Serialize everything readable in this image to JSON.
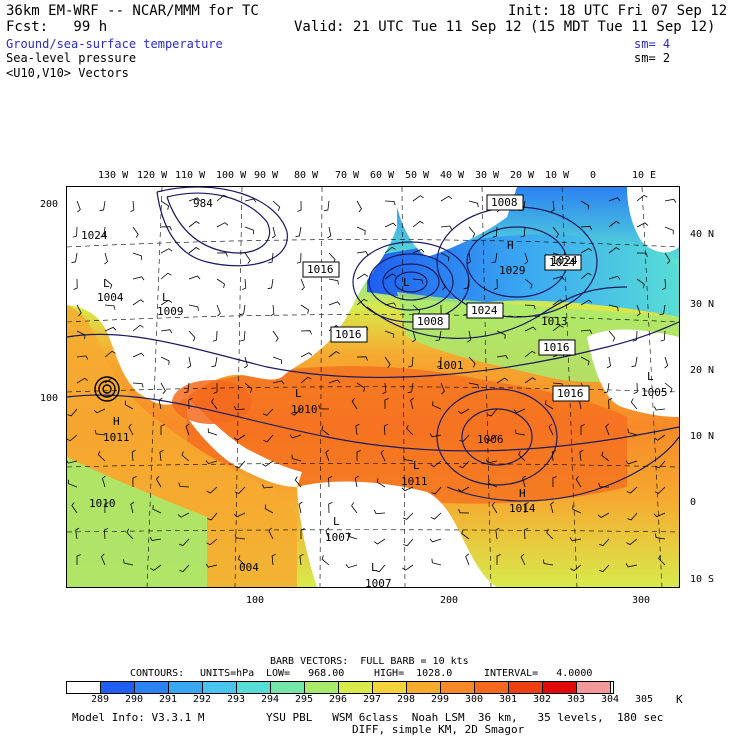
{
  "header": {
    "model": "36km EM-WRF -- NCAR/MMM for TC",
    "init": "Init: 18 UTC Fri 07 Sep 12",
    "fcst": "Fcst:   99 h",
    "valid": "Valid: 21 UTC Tue 11 Sep 12 (15 MDT Tue 11 Sep 12)",
    "field1": "Ground/sea-surface temperature",
    "field1_sm": "sm= 4",
    "field2": "Sea-level pressure",
    "field2_sm": "sm= 2",
    "field3": "<U10,V10> Vectors"
  },
  "axes": {
    "top_lon": [
      "130 W",
      "120 W",
      "110 W",
      "100 W",
      "90 W",
      "80 W",
      "70 W",
      "60 W",
      "50 W",
      "40 W",
      "30 W",
      "20 W",
      "10 W",
      "0",
      "10 E"
    ],
    "right_lat": [
      "40 N",
      "30 N",
      "20 N",
      "10 N",
      "0",
      "10 S"
    ],
    "left_y": [
      "200",
      "100"
    ],
    "bottom_x": [
      "100",
      "200",
      "300"
    ]
  },
  "pressure_labels": {
    "boxed": [
      "1008",
      "1016",
      "1024",
      "1016",
      "1008",
      "1024",
      "1016",
      "1016"
    ],
    "centers": [
      "984",
      "1024",
      "L",
      "1004",
      "L",
      "1009",
      "L",
      "1029",
      "H",
      "1024",
      "1013",
      "1001",
      "L",
      "1010",
      "H",
      "1011",
      "1006",
      "1005",
      "L",
      "1011",
      "L",
      "1014",
      "H",
      "1010",
      "L",
      "1007",
      "004",
      "1007",
      "L"
    ]
  },
  "barb_info": "BARB VECTORS:  FULL BARB = 10 kts",
  "contours": {
    "label": "CONTOURS:",
    "units": "UNITS=hPa",
    "low": "LOW=   968.00",
    "high": "HIGH=  1028.0",
    "interval": "INTERVAL=   4.0000"
  },
  "colorbar": {
    "colors": [
      "#ffffff",
      "#1f5ef0",
      "#2b82f2",
      "#3aa7f3",
      "#49c4ef",
      "#58ddd6",
      "#76e6a8",
      "#a8ea6e",
      "#d8ea4c",
      "#f4d33c",
      "#f6aa30",
      "#f78a28",
      "#f56a1e",
      "#ec3f14",
      "#e00a0a",
      "#f29a9a"
    ],
    "labels": [
      "289",
      "290",
      "291",
      "292",
      "293",
      "294",
      "295",
      "296",
      "297",
      "298",
      "299",
      "300",
      "301",
      "302",
      "303",
      "304",
      "305"
    ],
    "unit": "K"
  },
  "footer": {
    "line1_left": "Model Info: V3.3.1 M",
    "line1_right": "YSU PBL   WSM 6class  Noah LSM  36 km,   35 levels,  180 sec",
    "line2": "DIFF, simple KM, 2D Smagor"
  }
}
